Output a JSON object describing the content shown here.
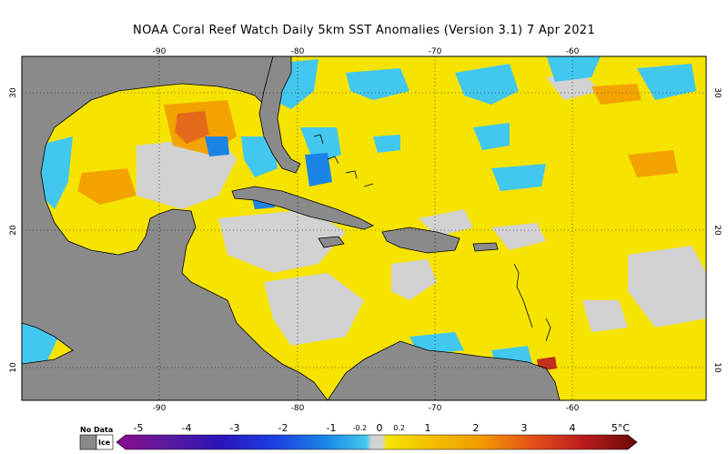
{
  "title": "NOAA Coral Reef Watch Daily 5km SST Anomalies (Version 3.1)   7 Apr 2021",
  "map": {
    "lon_ticks": [
      "-90",
      "-80",
      "-70",
      "-60"
    ],
    "lat_ticks": [
      "30",
      "20",
      "10"
    ],
    "colors": {
      "land": "#8a8a8a",
      "near_zero": "#d2d2d2",
      "warm_1": "#f6e400",
      "warm_2": "#f2a300",
      "warm_3": "#e46a1a",
      "cool_1": "#42c8ee",
      "cool_2": "#1a84e6",
      "cool_3": "#1d2fd0",
      "cool_4": "#5a1aa0"
    }
  },
  "colorbar": {
    "no_data_label": "No Data",
    "ice_label": "Ice",
    "ticks": [
      "-5",
      "-4",
      "-3",
      "-2",
      "-1",
      "-0.2",
      "0",
      "0.2",
      "1",
      "2",
      "3",
      "4",
      "5°C"
    ],
    "range": [
      -5,
      5
    ],
    "colors": [
      "#8b0a8b",
      "#5a1aa0",
      "#2a14b8",
      "#1d3de0",
      "#1a84e6",
      "#42c8ee",
      "#d2d2d2",
      "#f6e400",
      "#f2c200",
      "#f29a00",
      "#e4501a",
      "#b81a1a",
      "#6a0a0a"
    ]
  }
}
